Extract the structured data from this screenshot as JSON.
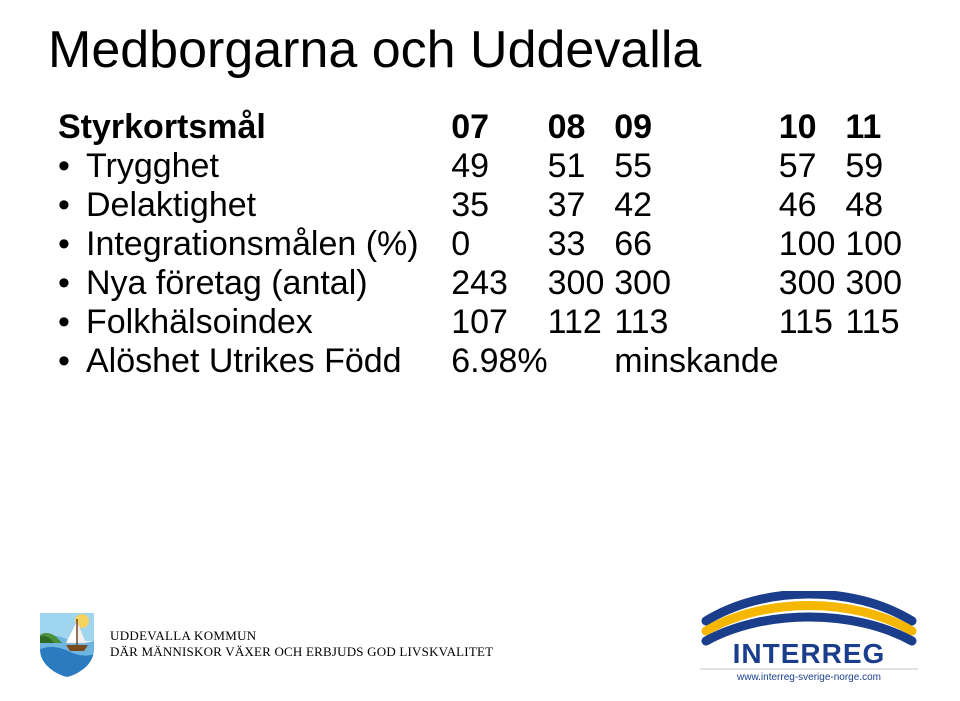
{
  "title": "Medborgarna och Uddevalla",
  "columns": [
    "07",
    "08",
    "09",
    "10",
    "11"
  ],
  "row_header_label": "Styrkortsmål",
  "rows": [
    {
      "label": "Trygghet",
      "values": [
        "49",
        "51",
        "55",
        "57",
        "59"
      ]
    },
    {
      "label": "Delaktighet",
      "values": [
        "35",
        "37",
        "42",
        "46",
        "48"
      ]
    },
    {
      "label": "Integrationsmålen (%)",
      "values": [
        "0",
        "33",
        "66",
        "100",
        "100"
      ]
    },
    {
      "label": "Nya företag (antal)",
      "values": [
        "243",
        "300",
        "300",
        "300",
        "300"
      ]
    },
    {
      "label": "Folkhälsoindex",
      "values": [
        "107",
        "112",
        "113",
        "115",
        "115"
      ]
    },
    {
      "label": "Alöshet Utrikes Född",
      "values": [
        "6.98%",
        "",
        "minskande",
        "",
        ""
      ]
    }
  ],
  "footer": {
    "org_line1": "UDDEVALLA KOMMUN",
    "org_line2": "DÄR MÄNNISKOR VÄXER OCH ERBJUDS GOD LIVSKVALITET",
    "interreg_word": "INTERREG",
    "interreg_url": "www.interreg-sverige-norge.com"
  },
  "colors": {
    "text": "#000000",
    "bg": "#ffffff",
    "logo_sea": "#2a7bbf",
    "logo_sea_light": "#6fb5e1",
    "logo_sail": "#ffffff",
    "logo_hull": "#7a4a1f",
    "logo_hill": "#4a8f3a",
    "logo_hill_dark": "#2f6b25",
    "logo_sun": "#f4d35e",
    "interreg_blue": "#1a3e8c",
    "interreg_yellow": "#f5b700",
    "interreg_text": "#1a3e8c",
    "interreg_line": "#c4c4c4"
  },
  "fonts": {
    "title_size": 52,
    "body_size": 34,
    "footer_size": 13
  }
}
